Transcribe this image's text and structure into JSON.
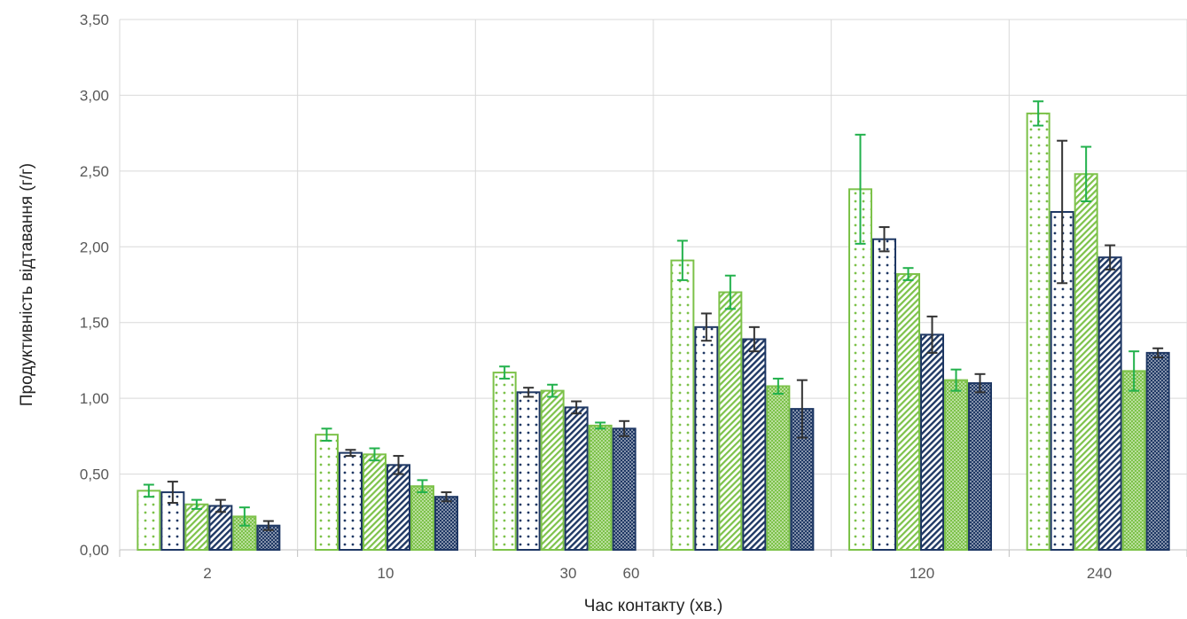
{
  "chart_data": {
    "type": "bar",
    "title": "",
    "xlabel": "Час контакту (хв.)",
    "ylabel": "Продуктивність відтавання (г/г)",
    "ylim": [
      0,
      3.5
    ],
    "y_ticks": [
      "0,00",
      "0,50",
      "1,00",
      "1,50",
      "2,00",
      "2,50",
      "3,00",
      "3,50"
    ],
    "x_tick_labels": [
      "2",
      "10",
      "30",
      "60",
      "120",
      "240"
    ],
    "grid": true,
    "legend": "none",
    "colors": {
      "green": "#7dc24a",
      "navy": "#1f3864",
      "error_green": "#22b14c",
      "error_dark": "#333333",
      "grid": "#d9d9d9",
      "axis": "#bfbfbf"
    },
    "series": [
      {
        "pattern": "dots-sparse",
        "color": "green",
        "values": [
          0.39,
          0.76,
          1.17,
          1.91,
          2.38,
          2.88
        ],
        "errors": [
          0.04,
          0.04,
          0.04,
          0.13,
          0.36,
          0.08
        ]
      },
      {
        "pattern": "dots-sparse",
        "color": "navy",
        "values": [
          0.38,
          0.64,
          1.04,
          1.47,
          2.05,
          2.23
        ],
        "errors": [
          0.07,
          0.02,
          0.03,
          0.09,
          0.08,
          0.47
        ]
      },
      {
        "pattern": "diagonal-fine",
        "color": "green",
        "values": [
          0.3,
          0.63,
          1.05,
          1.7,
          1.82,
          2.48
        ],
        "errors": [
          0.03,
          0.04,
          0.04,
          0.11,
          0.04,
          0.18
        ]
      },
      {
        "pattern": "diagonal-fine",
        "color": "navy",
        "values": [
          0.29,
          0.56,
          0.94,
          1.39,
          1.42,
          1.93
        ],
        "errors": [
          0.04,
          0.06,
          0.04,
          0.08,
          0.12,
          0.08
        ]
      },
      {
        "pattern": "dots-dense",
        "color": "green",
        "values": [
          0.22,
          0.42,
          0.82,
          1.08,
          1.12,
          1.18
        ],
        "errors": [
          0.06,
          0.04,
          0.02,
          0.05,
          0.07,
          0.13
        ]
      },
      {
        "pattern": "dots-dense",
        "color": "navy",
        "values": [
          0.16,
          0.35,
          0.8,
          0.93,
          1.1,
          1.3
        ],
        "errors": [
          0.03,
          0.03,
          0.05,
          0.19,
          0.06,
          0.03
        ]
      }
    ]
  }
}
